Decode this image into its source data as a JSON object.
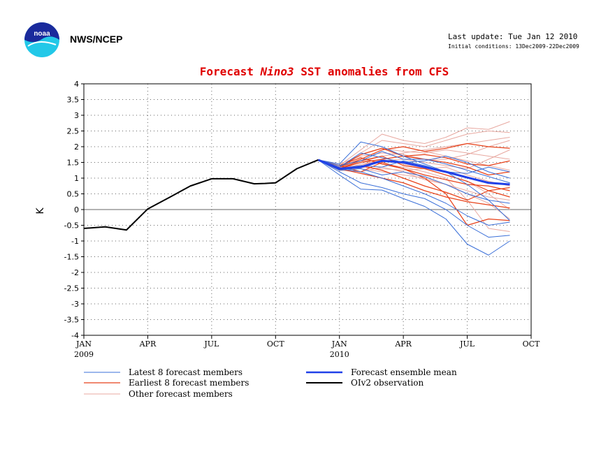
{
  "header": {
    "logo_text": "noaa",
    "agency": "NWS/NCEP",
    "last_update": "Last update: Tue Jan 12 2010",
    "initial_conditions": "Initial conditions: 13Dec2009-22Dec2009"
  },
  "colors": {
    "title": "#e00000",
    "latest": "#3a6fd8",
    "earliest": "#e8421a",
    "other": "#e8a8a0",
    "mean": "#2040e8",
    "obs": "#000000",
    "logo_blue": "#1a2a9c",
    "logo_cyan": "#22c8e8"
  },
  "chart_data": {
    "type": "line",
    "title_parts": [
      "Forecast ",
      "Nino3",
      "  SST anomalies from CFS"
    ],
    "title": "Forecast Nino3 SST anomalies from CFS",
    "ylabel": "K",
    "ylim": [
      -4,
      4
    ],
    "yticks": [
      4,
      3.5,
      3,
      2.5,
      2,
      1.5,
      1,
      0.5,
      0,
      -0.5,
      -1,
      -1.5,
      -2,
      -2.5,
      -3,
      -3.5,
      -4
    ],
    "xlim": [
      0,
      21
    ],
    "xticks": [
      {
        "x": 0,
        "label": "JAN",
        "year": "2009"
      },
      {
        "x": 3,
        "label": "APR",
        "year": ""
      },
      {
        "x": 6,
        "label": "JUL",
        "year": ""
      },
      {
        "x": 9,
        "label": "OCT",
        "year": ""
      },
      {
        "x": 12,
        "label": "JAN",
        "year": "2010"
      },
      {
        "x": 15,
        "label": "APR",
        "year": ""
      },
      {
        "x": 18,
        "label": "JUL",
        "year": ""
      },
      {
        "x": 21,
        "label": "OCT",
        "year": ""
      }
    ],
    "grid": true,
    "zero_line": true,
    "legend": [
      {
        "key": "latest",
        "label": "Latest 8 forecast members"
      },
      {
        "key": "earliest",
        "label": "Earliest 8 forecast members"
      },
      {
        "key": "other",
        "label": "Other forecast members"
      },
      {
        "key": "mean",
        "label": "Forecast ensemble mean"
      },
      {
        "key": "obs",
        "label": "OIv2 observation"
      }
    ],
    "observation": {
      "x": [
        0,
        1,
        2,
        3,
        3.5,
        4,
        5,
        6,
        7,
        8,
        8.5,
        9,
        10,
        11
      ],
      "y": [
        -0.6,
        -0.55,
        -0.65,
        0.02,
        0.2,
        0.38,
        0.75,
        0.98,
        0.98,
        0.82,
        0.83,
        0.85,
        1.3,
        1.58
      ]
    },
    "forecast_x": [
      11,
      12,
      13,
      14,
      15,
      16,
      17,
      18,
      19,
      20
    ],
    "ensemble_mean": [
      1.58,
      1.3,
      1.35,
      1.55,
      1.5,
      1.35,
      1.2,
      1.02,
      0.85,
      0.8
    ],
    "members_latest": [
      [
        1.58,
        1.1,
        0.65,
        0.62,
        0.35,
        0.1,
        -0.3,
        -1.1,
        -1.45,
        -1.0
      ],
      [
        1.58,
        1.2,
        0.85,
        0.7,
        0.5,
        0.35,
        0.0,
        -0.5,
        -0.88,
        -0.82
      ],
      [
        1.58,
        1.3,
        1.2,
        1.0,
        0.75,
        0.5,
        0.2,
        -0.2,
        -0.5,
        -0.4
      ],
      [
        1.58,
        1.45,
        2.15,
        2.0,
        1.7,
        1.45,
        1.2,
        0.8,
        0.3,
        -0.35
      ],
      [
        1.58,
        1.35,
        1.8,
        1.65,
        1.5,
        1.55,
        1.7,
        1.5,
        1.2,
        1.0
      ],
      [
        1.58,
        1.25,
        1.3,
        1.1,
        1.2,
        1.05,
        0.8,
        0.5,
        0.3,
        0.2
      ],
      [
        1.58,
        1.4,
        1.55,
        1.85,
        1.6,
        1.6,
        1.45,
        1.25,
        1.05,
        0.85
      ],
      [
        1.58,
        1.3,
        1.4,
        1.35,
        1.55,
        1.4,
        1.2,
        1.15,
        1.35,
        1.2
      ]
    ],
    "members_earliest": [
      [
        1.58,
        1.35,
        1.6,
        1.9,
        2.0,
        1.85,
        1.95,
        2.1,
        2.0,
        1.95
      ],
      [
        1.58,
        1.3,
        1.15,
        1.0,
        0.85,
        0.6,
        0.4,
        0.25,
        0.15,
        0.05
      ],
      [
        1.58,
        1.4,
        1.2,
        1.5,
        1.3,
        1.0,
        0.5,
        -0.5,
        -0.3,
        -0.35
      ],
      [
        1.58,
        1.3,
        1.55,
        1.7,
        1.4,
        1.3,
        1.1,
        0.9,
        0.6,
        0.4
      ],
      [
        1.58,
        1.35,
        1.75,
        1.95,
        1.7,
        1.6,
        1.5,
        1.35,
        1.1,
        1.2
      ],
      [
        1.58,
        1.25,
        1.4,
        1.25,
        1.0,
        0.75,
        0.55,
        0.3,
        0.6,
        0.7
      ],
      [
        1.58,
        1.3,
        1.5,
        1.6,
        1.7,
        1.75,
        1.65,
        1.45,
        1.4,
        1.55
      ],
      [
        1.58,
        1.4,
        1.65,
        1.45,
        1.3,
        1.1,
        0.95,
        0.8,
        0.75,
        0.6
      ]
    ],
    "members_other": [
      [
        1.58,
        1.4,
        1.9,
        2.4,
        2.2,
        2.1,
        2.3,
        2.6,
        2.55,
        2.8
      ],
      [
        1.58,
        1.35,
        1.8,
        2.2,
        2.1,
        2.0,
        2.2,
        2.4,
        2.5,
        2.45
      ],
      [
        1.58,
        1.3,
        1.6,
        1.9,
        2.0,
        1.85,
        1.7,
        1.55,
        1.4,
        1.25
      ],
      [
        1.58,
        1.45,
        1.7,
        1.8,
        1.75,
        1.6,
        1.6,
        1.75,
        2.0,
        2.2
      ],
      [
        1.58,
        1.35,
        1.4,
        1.6,
        1.45,
        1.3,
        1.1,
        0.9,
        0.5,
        0.0
      ],
      [
        1.58,
        1.25,
        1.2,
        1.35,
        1.2,
        0.95,
        0.8,
        0.5,
        0.2,
        -0.3
      ],
      [
        1.58,
        1.3,
        1.5,
        1.7,
        1.8,
        1.9,
        2.0,
        2.1,
        2.2,
        2.3
      ],
      [
        1.58,
        1.4,
        1.3,
        1.2,
        1.1,
        1.0,
        0.8,
        0.6,
        0.4,
        0.3
      ],
      [
        1.58,
        1.35,
        1.55,
        1.45,
        1.35,
        1.2,
        1.0,
        0.3,
        -0.6,
        -0.7
      ],
      [
        1.58,
        1.3,
        1.75,
        1.95,
        1.85,
        1.8,
        1.9,
        1.8,
        1.7,
        1.6
      ],
      [
        1.58,
        1.25,
        1.45,
        1.55,
        1.6,
        1.5,
        1.4,
        1.3,
        1.6,
        1.9
      ],
      [
        1.58,
        1.4,
        1.35,
        1.3,
        1.25,
        1.3,
        1.35,
        1.1,
        0.9,
        0.75
      ]
    ]
  }
}
